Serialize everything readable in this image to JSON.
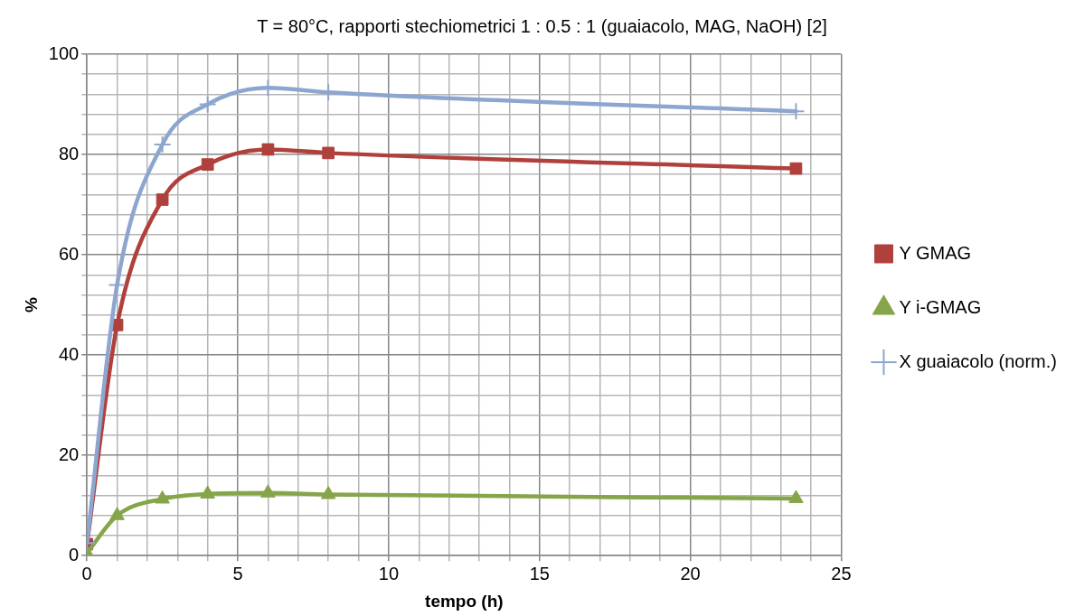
{
  "chart_data": {
    "type": "line",
    "title": "T = 80°C, rapporti stechiometrici 1 : 0.5 : 1 (guaiacolo, MAG, NaOH) [2]",
    "xlabel": "tempo (h)",
    "ylabel": "%",
    "x": [
      0,
      1,
      2.5,
      4,
      6,
      8,
      23.5
    ],
    "series": [
      {
        "name": "Y GMAG",
        "color": "#b0403c",
        "marker": "square",
        "values": [
          2.3,
          46,
          71,
          78,
          81,
          80.3,
          77.2
        ]
      },
      {
        "name": "Y i-GMAG",
        "color": "#86a54a",
        "marker": "triangle",
        "values": [
          0.5,
          8,
          11.3,
          12.3,
          12.5,
          12.2,
          11.4
        ]
      },
      {
        "name": "X guaiacolo (norm.)",
        "color": "#8da6cf",
        "marker": "cross",
        "values": [
          2.5,
          54,
          82,
          90,
          93.3,
          92.4,
          88.6
        ]
      }
    ],
    "xlim": [
      0,
      25
    ],
    "xticks": [
      0,
      {
        "value": 1,
        "label": null
      },
      {
        "value": 2,
        "label": null
      },
      {
        "value": 3,
        "label": null
      },
      {
        "value": 4,
        "label": null
      },
      5,
      {
        "value": 6,
        "label": null
      },
      {
        "value": 7,
        "label": null
      },
      {
        "value": 8,
        "label": null
      },
      {
        "value": 9,
        "label": null
      },
      10,
      {
        "value": 11,
        "label": null
      },
      {
        "value": 12,
        "label": null
      },
      {
        "value": 13,
        "label": null
      },
      {
        "value": 14,
        "label": null
      },
      15,
      {
        "value": 16,
        "label": null
      },
      {
        "value": 17,
        "label": null
      },
      {
        "value": 18,
        "label": null
      },
      {
        "value": 19,
        "label": null
      },
      20,
      {
        "value": 21,
        "label": null
      },
      {
        "value": 22,
        "label": null
      },
      {
        "value": 23,
        "label": null
      },
      {
        "value": 24,
        "label": null
      },
      25
    ],
    "ylim": [
      0,
      100
    ],
    "yticks": [
      0,
      {
        "value": 4,
        "label": null
      },
      {
        "value": 8,
        "label": null
      },
      {
        "value": 12,
        "label": null
      },
      {
        "value": 16,
        "label": null
      },
      20,
      {
        "value": 24,
        "label": null
      },
      {
        "value": 28,
        "label": null
      },
      {
        "value": 32,
        "label": null
      },
      {
        "value": 36,
        "label": null
      },
      40,
      {
        "value": 44,
        "label": null
      },
      {
        "value": 48,
        "label": null
      },
      {
        "value": 52,
        "label": null
      },
      {
        "value": 56,
        "label": null
      },
      60,
      {
        "value": 64,
        "label": null
      },
      {
        "value": 68,
        "label": null
      },
      {
        "value": 72,
        "label": null
      },
      {
        "value": 76,
        "label": null
      },
      80,
      {
        "value": 84,
        "label": null
      },
      {
        "value": 88,
        "label": null
      },
      {
        "value": 92,
        "label": null
      },
      {
        "value": 96,
        "label": null
      },
      100
    ],
    "grid": true,
    "legend": "right",
    "line_style": "solid"
  }
}
